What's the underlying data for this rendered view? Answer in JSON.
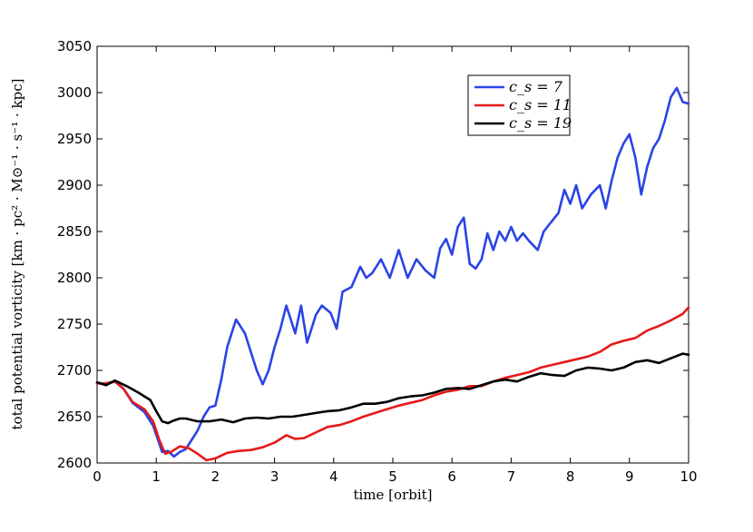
{
  "chart_data": {
    "type": "line",
    "title": "",
    "xlabel": "time [orbit]",
    "ylabel": "total potential vorticity [km · pc² · M⊙⁻¹ · s⁻¹ · kpc]",
    "xlim": [
      0,
      10
    ],
    "ylim": [
      2600,
      3050
    ],
    "xticks": [
      "0",
      "1",
      "2",
      "3",
      "4",
      "5",
      "6",
      "7",
      "8",
      "9",
      "10"
    ],
    "yticks": [
      "2600",
      "2650",
      "2700",
      "2750",
      "2800",
      "2850",
      "2900",
      "2950",
      "3000",
      "3050"
    ],
    "grid": false,
    "legend_position": "top-right",
    "series": [
      {
        "name": "c_s = 7",
        "color": "#2a43e6",
        "x": [
          0,
          0.15,
          0.3,
          0.45,
          0.6,
          0.8,
          0.95,
          1.1,
          1.2,
          1.3,
          1.4,
          1.5,
          1.6,
          1.7,
          1.8,
          1.9,
          2.0,
          2.1,
          2.2,
          2.35,
          2.5,
          2.6,
          2.7,
          2.8,
          2.9,
          3.0,
          3.1,
          3.2,
          3.35,
          3.45,
          3.55,
          3.7,
          3.8,
          3.95,
          4.05,
          4.15,
          4.3,
          4.45,
          4.55,
          4.65,
          4.8,
          4.95,
          5.1,
          5.25,
          5.4,
          5.55,
          5.7,
          5.8,
          5.9,
          6.0,
          6.1,
          6.2,
          6.3,
          6.4,
          6.5,
          6.6,
          6.7,
          6.8,
          6.9,
          7.0,
          7.1,
          7.2,
          7.3,
          7.45,
          7.55,
          7.65,
          7.8,
          7.9,
          8.0,
          8.1,
          8.2,
          8.35,
          8.5,
          8.6,
          8.7,
          8.8,
          8.9,
          9.0,
          9.1,
          9.2,
          9.3,
          9.4,
          9.5,
          9.6,
          9.7,
          9.8,
          9.9,
          10.0
        ],
        "y": [
          2687,
          2685,
          2688,
          2680,
          2665,
          2655,
          2640,
          2612,
          2613,
          2607,
          2612,
          2615,
          2625,
          2635,
          2650,
          2660,
          2662,
          2690,
          2725,
          2755,
          2740,
          2720,
          2700,
          2685,
          2700,
          2725,
          2745,
          2770,
          2740,
          2770,
          2730,
          2760,
          2770,
          2762,
          2745,
          2785,
          2790,
          2812,
          2800,
          2805,
          2820,
          2800,
          2830,
          2800,
          2820,
          2808,
          2800,
          2832,
          2842,
          2825,
          2855,
          2865,
          2815,
          2810,
          2820,
          2848,
          2830,
          2850,
          2840,
          2855,
          2840,
          2848,
          2840,
          2830,
          2850,
          2858,
          2870,
          2895,
          2880,
          2900,
          2875,
          2890,
          2900,
          2875,
          2905,
          2930,
          2945,
          2955,
          2930,
          2890,
          2920,
          2940,
          2950,
          2970,
          2995,
          3005,
          2990,
          2988
        ]
      },
      {
        "name": "c_s = 11",
        "color": "#e51a1a",
        "x": [
          0,
          0.15,
          0.3,
          0.45,
          0.6,
          0.8,
          0.95,
          1.05,
          1.15,
          1.25,
          1.4,
          1.55,
          1.7,
          1.85,
          2.0,
          2.2,
          2.4,
          2.6,
          2.8,
          3.0,
          3.2,
          3.35,
          3.5,
          3.7,
          3.9,
          4.1,
          4.3,
          4.5,
          4.7,
          4.9,
          5.1,
          5.3,
          5.5,
          5.7,
          5.9,
          6.1,
          6.3,
          6.5,
          6.7,
          6.9,
          7.1,
          7.3,
          7.5,
          7.7,
          7.9,
          8.1,
          8.3,
          8.5,
          8.7,
          8.9,
          9.1,
          9.3,
          9.5,
          9.7,
          9.9,
          10.0
        ],
        "y": [
          2686,
          2686,
          2688,
          2680,
          2666,
          2658,
          2645,
          2625,
          2610,
          2612,
          2618,
          2616,
          2610,
          2603,
          2605,
          2611,
          2613,
          2614,
          2617,
          2622,
          2630,
          2626,
          2627,
          2633,
          2639,
          2641,
          2645,
          2650,
          2654,
          2658,
          2662,
          2665,
          2668,
          2673,
          2677,
          2679,
          2683,
          2683,
          2688,
          2692,
          2695,
          2698,
          2703,
          2706,
          2709,
          2712,
          2715,
          2720,
          2728,
          2732,
          2735,
          2743,
          2748,
          2754,
          2761,
          2768
        ]
      },
      {
        "name": "c_s = 19",
        "color": "#000000",
        "x": [
          0,
          0.15,
          0.3,
          0.5,
          0.7,
          0.9,
          1.0,
          1.1,
          1.2,
          1.3,
          1.4,
          1.5,
          1.7,
          1.9,
          2.1,
          2.3,
          2.5,
          2.7,
          2.9,
          3.1,
          3.3,
          3.5,
          3.7,
          3.9,
          4.1,
          4.3,
          4.5,
          4.7,
          4.9,
          5.1,
          5.3,
          5.5,
          5.7,
          5.9,
          6.1,
          6.3,
          6.5,
          6.7,
          6.9,
          7.1,
          7.3,
          7.5,
          7.7,
          7.9,
          8.1,
          8.3,
          8.5,
          8.7,
          8.9,
          9.1,
          9.3,
          9.5,
          9.7,
          9.9,
          10.0
        ],
        "y": [
          2687,
          2684,
          2689,
          2683,
          2676,
          2668,
          2656,
          2645,
          2643,
          2646,
          2648,
          2648,
          2645,
          2645,
          2647,
          2644,
          2648,
          2649,
          2648,
          2650,
          2650,
          2652,
          2654,
          2656,
          2657,
          2660,
          2664,
          2664,
          2666,
          2670,
          2672,
          2673,
          2676,
          2680,
          2681,
          2680,
          2684,
          2688,
          2690,
          2688,
          2693,
          2697,
          2695,
          2694,
          2700,
          2703,
          2702,
          2700,
          2703,
          2709,
          2711,
          2708,
          2713,
          2718,
          2717
        ]
      }
    ]
  }
}
